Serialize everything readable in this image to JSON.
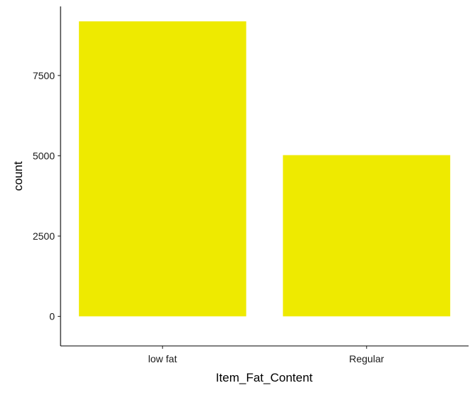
{
  "chart_data": {
    "type": "bar",
    "categories": [
      "low fat",
      "Regular"
    ],
    "values": [
      9185,
      5019
    ],
    "title": "",
    "xlabel": "Item_Fat_Content",
    "ylabel": "count",
    "ylim": [
      -920,
      9650
    ],
    "yticks": [
      0,
      2500,
      5000,
      7500
    ],
    "ytick_labels": [
      "0",
      "2500",
      "5000",
      "7500"
    ],
    "bar_color": "#EEEA00",
    "grid": false,
    "legend": "none"
  }
}
